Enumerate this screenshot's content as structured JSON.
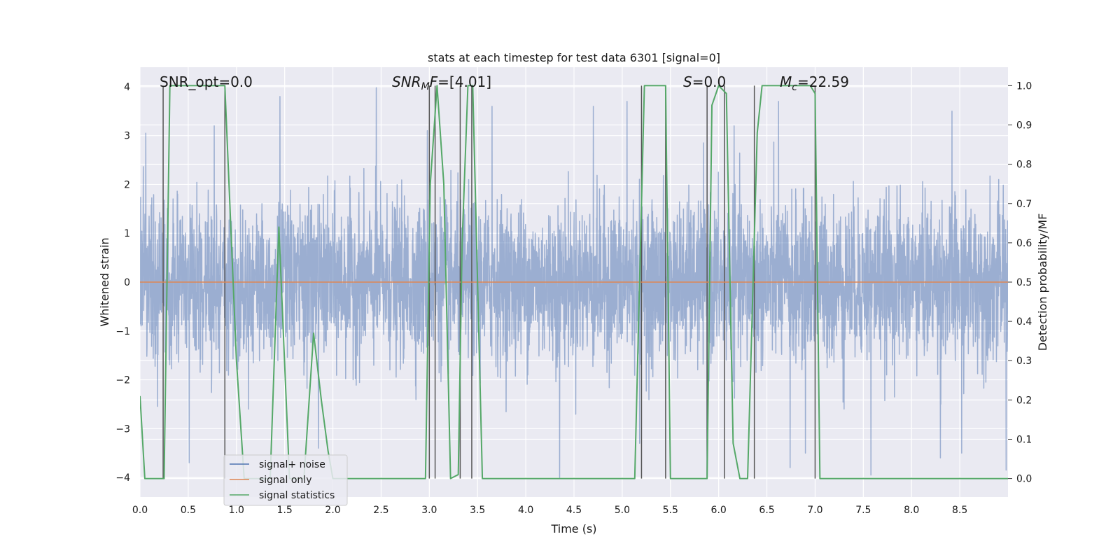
{
  "chart_data": {
    "type": "line",
    "title": "stats at each timestep for test data 6301 [signal=0]",
    "xlabel": "Time (s)",
    "ylabel": "Whitened strain",
    "y2label": "Detection probability/MF",
    "xlim": [
      0,
      9
    ],
    "ylim": [
      -4.4,
      4.4
    ],
    "y2lim": [
      -0.047,
      1.047
    ],
    "grid": true,
    "legend_position": "bottom-left",
    "x_ticks": [
      "0.0",
      "0.5",
      "1.0",
      "1.5",
      "2.0",
      "2.5",
      "3.0",
      "3.5",
      "4.0",
      "4.5",
      "5.0",
      "5.5",
      "6.0",
      "6.5",
      "7.0",
      "7.5",
      "8.0",
      "8.5"
    ],
    "y_ticks": [
      "−4",
      "−3",
      "−2",
      "−1",
      "0",
      "1",
      "2",
      "3",
      "4"
    ],
    "y2_ticks": [
      "0.0",
      "0.1",
      "0.2",
      "0.3",
      "0.4",
      "0.5",
      "0.6",
      "0.7",
      "0.8",
      "0.9",
      "1.0"
    ],
    "annotations": {
      "snr_opt": "SNR_opt=0.0",
      "snr_mf_var": "SNR",
      "snr_mf_sub": "M",
      "snr_mf_var2": "F",
      "snr_mf_value": "=[4.01]",
      "s_var": "S",
      "s_value": "=0.0",
      "mc_var": "M",
      "mc_sub": "c",
      "mc_value": "=22.59"
    },
    "series": [
      {
        "name": "signal+ noise",
        "color": "#4c72b0",
        "kind": "noise",
        "sigma": 0.8,
        "peaks": [
          [
            0.06,
            3.05
          ],
          [
            0.51,
            -3.7
          ],
          [
            0.77,
            3.2
          ],
          [
            1.45,
            3.8
          ],
          [
            1.85,
            -3.4
          ],
          [
            2.45,
            3.98
          ],
          [
            2.98,
            3.1
          ],
          [
            3.65,
            3.6
          ],
          [
            4.35,
            -4.0
          ],
          [
            4.7,
            3.6
          ],
          [
            5.05,
            3.7
          ],
          [
            5.18,
            -3.3
          ],
          [
            5.88,
            -3.95
          ],
          [
            6.16,
            3.2
          ],
          [
            6.62,
            3.7
          ],
          [
            6.74,
            -3.8
          ],
          [
            6.9,
            -3.5
          ],
          [
            7.3,
            -2.6
          ],
          [
            7.58,
            -3.95
          ],
          [
            8.3,
            -3.6
          ],
          [
            8.42,
            3.5
          ],
          [
            8.52,
            -3.5
          ],
          [
            8.98,
            -3.85
          ]
        ]
      },
      {
        "name": "signal only",
        "color": "#dd8452",
        "kind": "flat",
        "value": 0
      },
      {
        "name": "signal statistics",
        "color": "#55a868",
        "kind": "probability",
        "x": [
          0.0,
          0.05,
          0.25,
          0.31,
          0.88,
          1.0,
          1.08,
          1.2,
          1.35,
          1.44,
          1.55,
          1.7,
          1.8,
          1.88,
          1.95,
          2.0,
          2.96,
          3.01,
          3.08,
          3.15,
          3.22,
          3.3,
          3.34,
          3.4,
          3.45,
          3.55,
          5.13,
          5.23,
          5.4,
          5.45,
          5.5,
          5.88,
          5.93,
          6.0,
          6.08,
          6.15,
          6.22,
          6.3,
          6.4,
          6.45,
          6.95,
          7.0,
          7.05,
          8.0,
          8.5,
          8.75,
          9.0
        ],
        "y": [
          0.21,
          0.0,
          0.0,
          1.0,
          1.0,
          0.3,
          0.0,
          0.0,
          0.0,
          0.64,
          0.0,
          0.0,
          0.37,
          0.2,
          0.07,
          0.0,
          0.0,
          0.75,
          1.0,
          0.75,
          0.0,
          0.01,
          0.6,
          1.0,
          1.0,
          0.0,
          0.0,
          1.0,
          1.0,
          1.0,
          0.0,
          0.0,
          0.95,
          1.0,
          0.98,
          0.09,
          0.0,
          0.0,
          0.88,
          1.0,
          1.0,
          0.98,
          0.0,
          0.0,
          0.0,
          0.0,
          0.0
        ]
      }
    ],
    "vertical_markers": [
      0.24,
      0.88,
      3.0,
      3.06,
      3.32,
      3.44,
      5.2,
      5.45,
      5.88,
      6.06,
      6.37,
      7.0
    ]
  }
}
